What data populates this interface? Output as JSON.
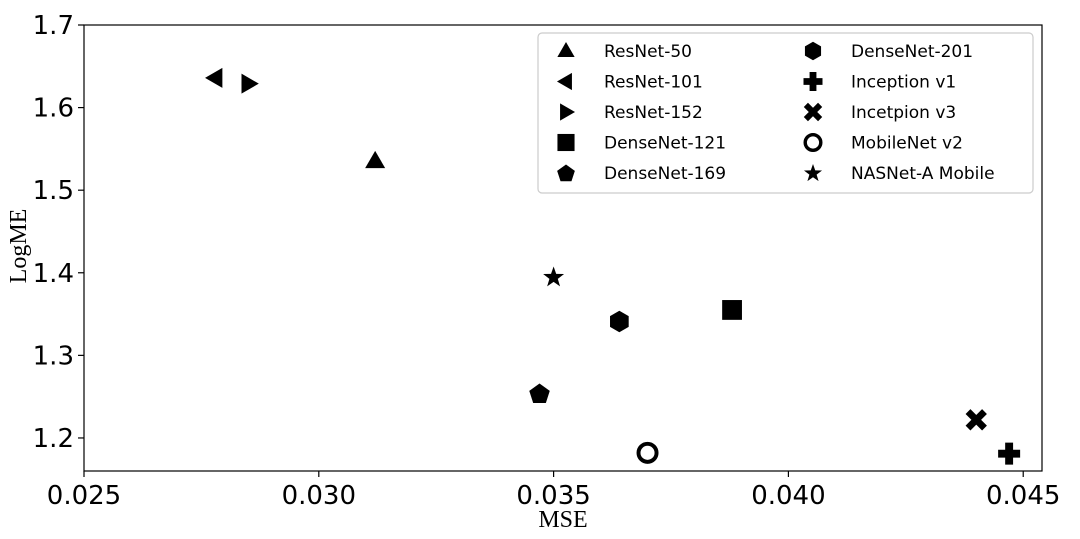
{
  "chart_data": {
    "type": "scatter",
    "title": "",
    "xlabel": "MSE",
    "ylabel": "LogME",
    "xlim": [
      0.025,
      0.0454
    ],
    "ylim": [
      1.16,
      1.7
    ],
    "xticks": [
      0.025,
      0.03,
      0.035,
      0.04,
      0.045
    ],
    "xtick_labels": [
      "0.025",
      "0.030",
      "0.035",
      "0.040",
      "0.045"
    ],
    "yticks": [
      1.2,
      1.3,
      1.4,
      1.5,
      1.6,
      1.7
    ],
    "ytick_labels": [
      "1.2",
      "1.3",
      "1.4",
      "1.5",
      "1.6",
      "1.7"
    ],
    "grid": false,
    "legend_placement": "top-right",
    "legend_columns": 2,
    "points": [
      {
        "name": "ResNet-50",
        "marker": "triangle-up",
        "x": 0.0312,
        "y": 1.535
      },
      {
        "name": "ResNet-101",
        "marker": "triangle-left",
        "x": 0.0278,
        "y": 1.636
      },
      {
        "name": "ResNet-152",
        "marker": "triangle-right",
        "x": 0.0285,
        "y": 1.629
      },
      {
        "name": "DenseNet-121",
        "marker": "square",
        "x": 0.0388,
        "y": 1.355
      },
      {
        "name": "DenseNet-169",
        "marker": "pentagon",
        "x": 0.0347,
        "y": 1.254
      },
      {
        "name": "DenseNet-201",
        "marker": "hexagon",
        "x": 0.0364,
        "y": 1.341
      },
      {
        "name": "Inception v1",
        "marker": "plus",
        "x": 0.0447,
        "y": 1.181
      },
      {
        "name": "Incetpion v3",
        "marker": "x",
        "x": 0.044,
        "y": 1.222
      },
      {
        "name": "MobileNet v2",
        "marker": "circle-open",
        "x": 0.037,
        "y": 1.182
      },
      {
        "name": "NASNet-A Mobile",
        "marker": "star",
        "x": 0.035,
        "y": 1.395
      }
    ]
  }
}
